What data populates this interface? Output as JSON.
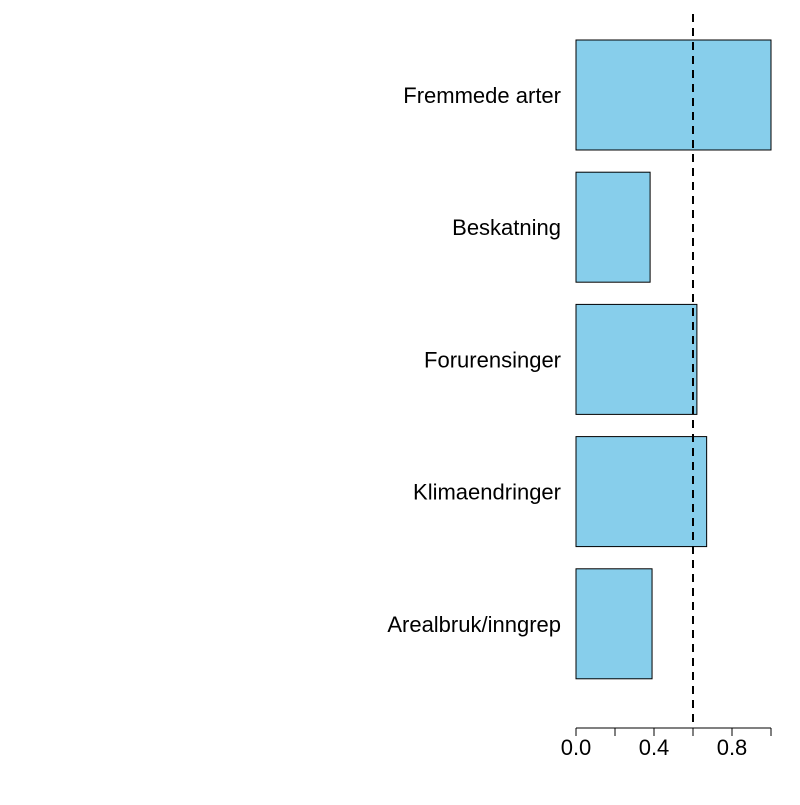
{
  "chart_data": {
    "type": "bar",
    "orientation": "horizontal",
    "categories": [
      "Fremmede arter",
      "Beskatning",
      "Forurensinger",
      "Klimaendringer",
      "Arealbruk/inngrep"
    ],
    "values": [
      1.0,
      0.38,
      0.62,
      0.67,
      0.39
    ],
    "x_ticks": [
      0.0,
      0.2,
      0.4,
      0.6,
      0.8,
      1.0
    ],
    "x_tick_labels": [
      "0.0",
      "",
      "0.4",
      "",
      "0.8",
      ""
    ],
    "xlim": [
      0,
      1.0
    ],
    "reference_line": 0.6,
    "title": "",
    "xlabel": "",
    "ylabel": "",
    "grid": false,
    "legend": "none",
    "colors": {
      "bar_fill": "#87ceeb",
      "bar_stroke": "#000000",
      "reference_line": "#000000",
      "axis": "#000000"
    }
  }
}
